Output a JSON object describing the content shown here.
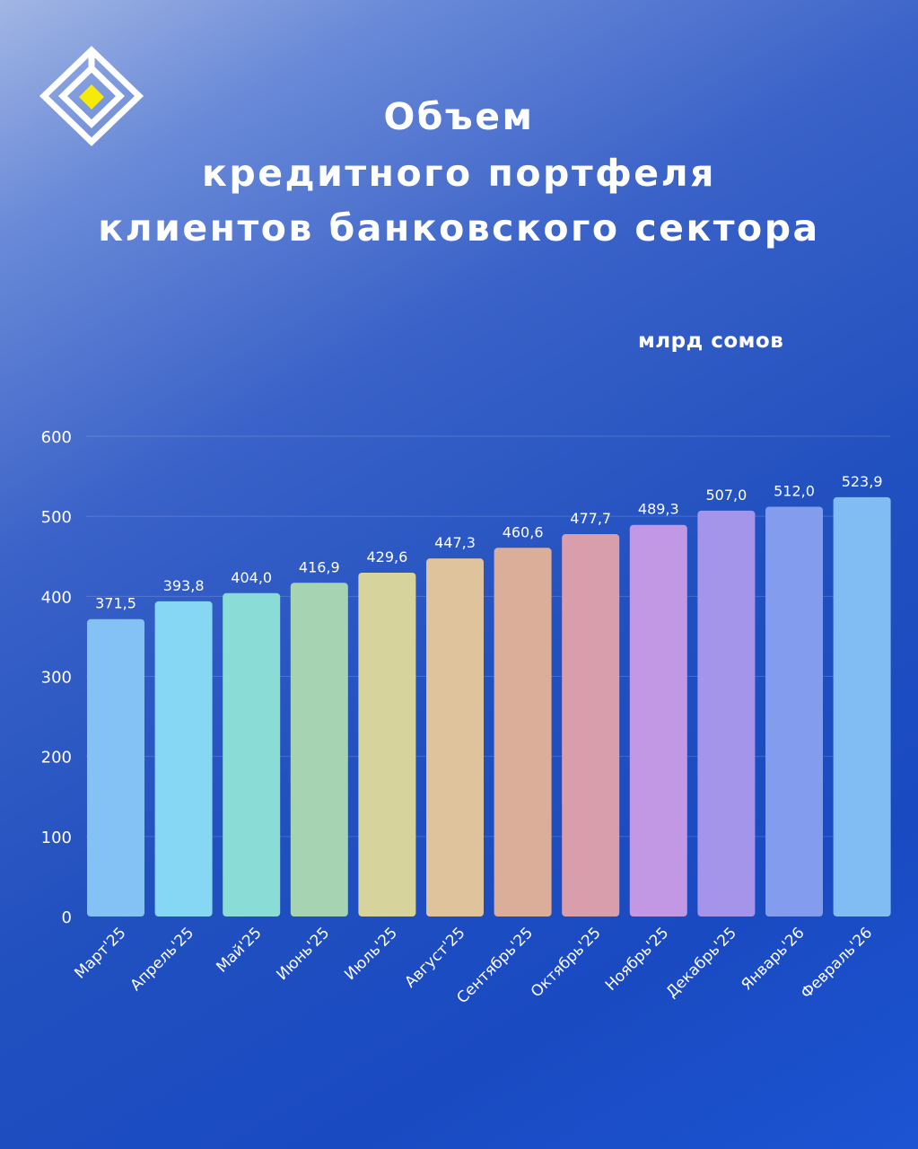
{
  "header": {
    "title_lines": [
      "Объем",
      "кредитного портфеля",
      "клиентов банковского сектора"
    ]
  },
  "unit_label": "млрд сомов",
  "colors": {
    "logo_white": "#ffffff",
    "logo_yellow": "#f5ea0a",
    "bars": [
      "#84c1f5",
      "#86d7f3",
      "#8adcd6",
      "#a6d4b2",
      "#d6d49c",
      "#dfc39c",
      "#dbae9a",
      "#d99eac",
      "#c297e4",
      "#a595ea",
      "#849cee",
      "#81bcf2"
    ]
  },
  "chart_data": {
    "type": "bar",
    "title": "",
    "xlabel": "",
    "ylabel": "млрд сомов",
    "ylim": [
      0,
      600
    ],
    "yticks": [
      0,
      100,
      200,
      300,
      400,
      500,
      600
    ],
    "grid": true,
    "categories": [
      "Март'25",
      "Апрель'25",
      "Май'25",
      "Июнь'25",
      "Июль'25",
      "Август'25",
      "Сентябрь'25",
      "Октябрь'25",
      "Ноябрь'25",
      "Декабрь'25",
      "Январь'26",
      "Февраль'26"
    ],
    "values": [
      371.5,
      393.8,
      404.0,
      416.9,
      429.6,
      447.3,
      460.6,
      477.7,
      489.3,
      507.0,
      512.0,
      523.9
    ],
    "value_labels": [
      "371,5",
      "393,8",
      "404,0",
      "416,9",
      "429,6",
      "447,3",
      "460,6",
      "477,7",
      "489,3",
      "507,0",
      "512,0",
      "523,9"
    ]
  }
}
